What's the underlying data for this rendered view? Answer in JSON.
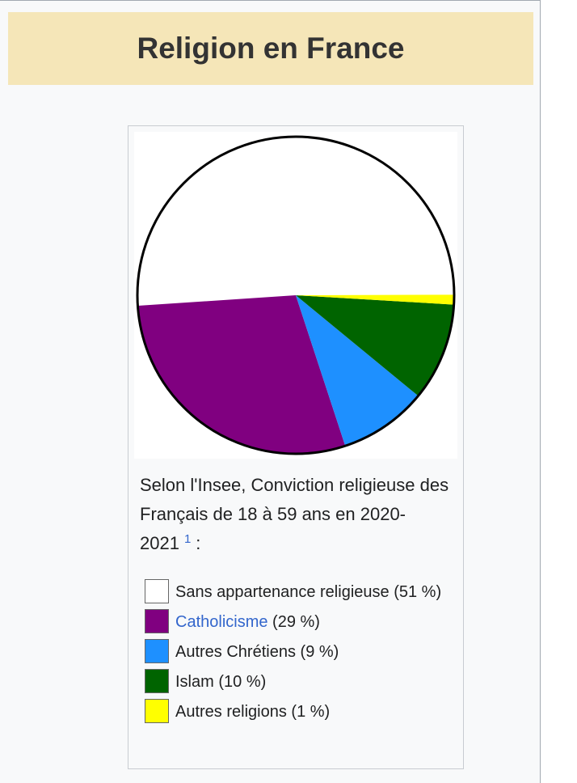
{
  "infobox": {
    "title": "Religion en France"
  },
  "caption": {
    "text": "Selon l'Insee, Conviction religieuse des Français de 18 à 59 ans en 2020-2021",
    "ref": "1",
    "suffix": ":"
  },
  "chart_data": {
    "type": "pie",
    "title": "",
    "series": [
      {
        "name": "Sans appartenance religieuse",
        "value": 51,
        "color": "#ffffff"
      },
      {
        "name": "Catholicisme",
        "value": 29,
        "color": "#800080"
      },
      {
        "name": "Autres Chrétiens",
        "value": 9,
        "color": "#1e90ff"
      },
      {
        "name": "Islam",
        "value": 10,
        "color": "#006400"
      },
      {
        "name": "Autres religions",
        "value": 1,
        "color": "#ffff00"
      }
    ]
  },
  "legend": [
    {
      "label": "Sans appartenance religieuse",
      "pct": "(51 %)",
      "link": false
    },
    {
      "label": "Catholicisme",
      "pct": "(29 %)",
      "link": true
    },
    {
      "label": "Autres Chrétiens",
      "pct": "(9 %)",
      "link": false
    },
    {
      "label": "Islam",
      "pct": "(10 %)",
      "link": false
    },
    {
      "label": "Autres religions",
      "pct": "(1 %)",
      "link": false
    }
  ]
}
